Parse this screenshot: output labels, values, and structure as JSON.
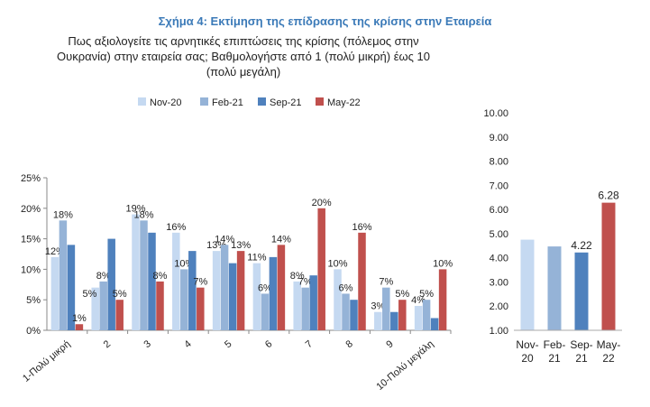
{
  "figure": {
    "title": "Σχήμα 4: Εκτίμηση της επίδρασης της κρίσης στην Εταιρεία",
    "question": "Πως αξιολογείτε τις αρνητικές επιπτώσεις της κρίσης (πόλεμος στην Ουκρανία) στην εταιρεία σας; Βαθμολογήστε από 1 (πολύ μικρή) έως 10 (πολύ μεγάλη)"
  },
  "colors": {
    "Nov-20": "#c5d9f1",
    "Feb-21": "#95b3d7",
    "Sep-21": "#4f81bd",
    "May-22": "#c0504d"
  },
  "chart_data": [
    {
      "type": "bar",
      "title": "",
      "categories": [
        "1-Πολύ μικρή",
        "2",
        "3",
        "4",
        "5",
        "6",
        "7",
        "8",
        "9",
        "10-Πολύ μεγάλη"
      ],
      "series": [
        {
          "name": "Nov-20",
          "values": [
            12,
            7,
            19,
            16,
            13,
            11,
            8,
            10,
            3,
            4
          ]
        },
        {
          "name": "Feb-21",
          "values": [
            18,
            8,
            18,
            10,
            14,
            6,
            7,
            6,
            7,
            5
          ]
        },
        {
          "name": "Sep-21",
          "values": [
            14,
            15,
            16,
            13,
            11,
            12,
            9,
            5,
            3,
            2
          ]
        },
        {
          "name": "May-22",
          "values": [
            1,
            5,
            8,
            7,
            13,
            14,
            20,
            16,
            5,
            10
          ]
        }
      ],
      "data_labels": [
        [
          "12%",
          "",
          "19%",
          "16%",
          "13%",
          "11%",
          "8%",
          "10%",
          "3%",
          "4%"
        ],
        [
          "18%",
          "8%",
          "18%",
          "10%",
          "14%",
          "6%",
          "7%",
          "6%",
          "7%",
          "5%"
        ],
        [
          "",
          "",
          "",
          "",
          "",
          "",
          "",
          "",
          "",
          ""
        ],
        [
          "1%",
          "5%",
          "8%",
          "7%",
          "13%",
          "14%",
          "20%",
          "16%",
          "5%",
          "10%"
        ]
      ],
      "extra_labels": [
        {
          "category": "2",
          "text": "5%"
        }
      ],
      "ylim": [
        0,
        25
      ],
      "yticks": [
        "0%",
        "5%",
        "10%",
        "15%",
        "20%",
        "25%"
      ],
      "legend": "top",
      "grid": false
    },
    {
      "type": "bar",
      "title": "",
      "categories": [
        "Nov-20",
        "Feb-21",
        "Sep-21",
        "May-22"
      ],
      "category_lines": [
        [
          "Nov-",
          "20"
        ],
        [
          "Feb-",
          "21"
        ],
        [
          "Sep-",
          "21"
        ],
        [
          "May-",
          "22"
        ]
      ],
      "values": [
        4.75,
        4.47,
        4.22,
        6.28
      ],
      "data_labels": [
        "",
        "",
        "4.22",
        "6.28"
      ],
      "ylim": [
        1,
        10
      ],
      "yticks": [
        "1.00",
        "2.00",
        "3.00",
        "4.00",
        "5.00",
        "6.00",
        "7.00",
        "8.00",
        "9.00",
        "10.00"
      ],
      "grid": false
    }
  ]
}
